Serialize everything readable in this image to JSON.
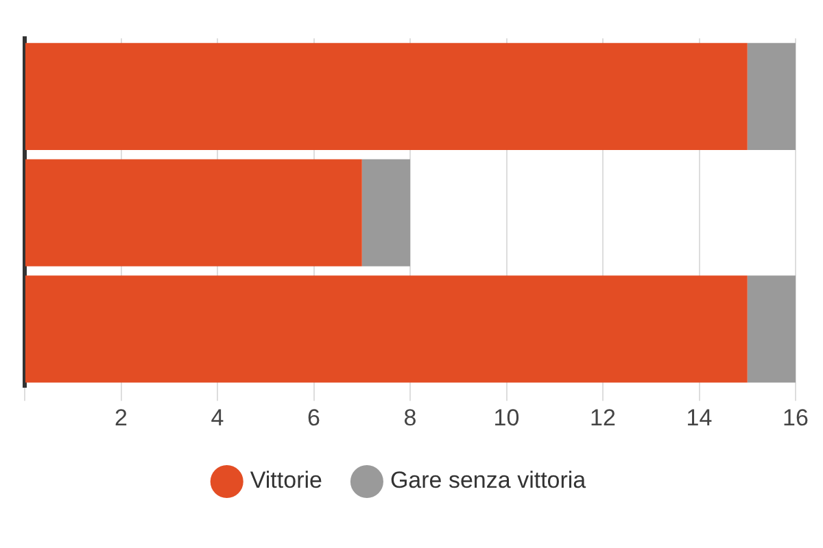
{
  "chart_data": {
    "type": "bar",
    "orientation": "horizontal",
    "stacked": true,
    "categories": [
      null,
      null,
      null
    ],
    "series": [
      {
        "name": "Vittorie",
        "color": "#e34d24",
        "values": [
          15,
          7,
          15
        ]
      },
      {
        "name": "Gare senza vittoria",
        "color": "#9a9a9a",
        "values": [
          1,
          1,
          1
        ]
      }
    ],
    "xlim": [
      0,
      16
    ],
    "xticks": [
      {
        "value": 0,
        "label": null
      },
      2,
      4,
      6,
      8,
      10,
      12,
      14,
      16
    ],
    "grid": "x",
    "legend": "bottom"
  }
}
